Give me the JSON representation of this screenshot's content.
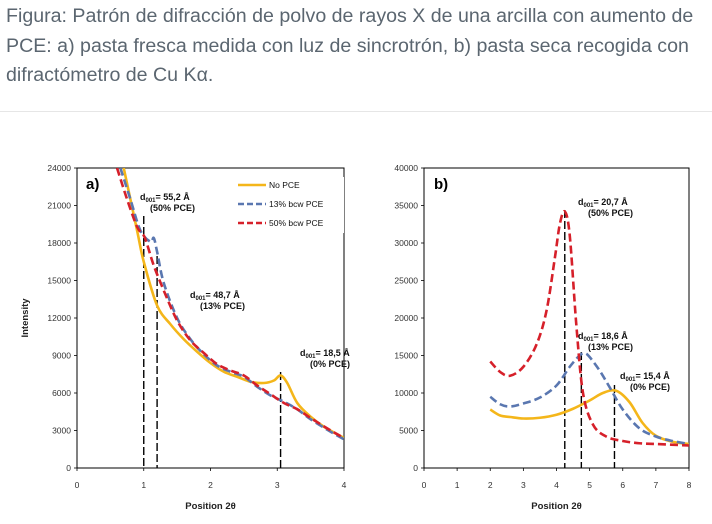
{
  "caption": "Figura: Patrón de difracción de polvo de rayos X de una arcilla con aumento de PCE: a) pasta fresca medida con luz de sincrotrón, b) pasta seca recogida con difractómetro de Cu Kα.",
  "colors": {
    "no_pce": "#f4b61a",
    "bcw13": "#5a77b0",
    "bcw50": "#d6202a",
    "frame": "#000000"
  },
  "chart_data": [
    {
      "type": "line",
      "panel_label": "a)",
      "xlabel": "Position 2θ",
      "ylabel": "Intensity",
      "xlim": [
        0,
        4
      ],
      "ylim": [
        0,
        24000
      ],
      "xticks": [
        0,
        1,
        2,
        3,
        4
      ],
      "yticks": [
        0,
        3000,
        6000,
        9000,
        12000,
        15000,
        18000,
        21000,
        24000
      ],
      "legend": "top-right",
      "series": [
        {
          "name": "No PCE",
          "color": "#f4b61a",
          "dash": "solid",
          "x": [
            0.7,
            0.9,
            1.0,
            1.2,
            1.4,
            1.6,
            1.8,
            2.0,
            2.2,
            2.4,
            2.6,
            2.8,
            2.95,
            3.05,
            3.15,
            3.3,
            3.5,
            3.7,
            4.0
          ],
          "y": [
            24000,
            19000,
            16500,
            13000,
            11500,
            10300,
            9300,
            8400,
            7700,
            7300,
            6900,
            6800,
            7000,
            7400,
            6800,
            5200,
            4100,
            3300,
            2400
          ]
        },
        {
          "name": "13% bcw PCE",
          "color": "#5a77b0",
          "dash": "dash",
          "x": [
            0.65,
            0.8,
            0.95,
            1.1,
            1.15,
            1.2,
            1.3,
            1.5,
            1.7,
            1.9,
            2.1,
            2.3,
            2.5,
            2.7,
            2.9,
            3.1,
            3.3,
            3.5,
            3.8,
            4.0
          ],
          "y": [
            24000,
            21500,
            19000,
            18100,
            18400,
            17300,
            14800,
            12000,
            10300,
            9100,
            8200,
            7700,
            7300,
            6500,
            5800,
            5300,
            4700,
            3900,
            2900,
            2300
          ]
        },
        {
          "name": "50% bcw PCE",
          "color": "#d6202a",
          "dash": "dash",
          "x": [
            0.6,
            0.75,
            0.9,
            1.0,
            1.05,
            1.15,
            1.3,
            1.5,
            1.7,
            1.9,
            2.1,
            2.3,
            2.5,
            2.7,
            2.9,
            3.1,
            3.3,
            3.5,
            3.8,
            4.0
          ],
          "y": [
            24000,
            21500,
            19300,
            18600,
            17900,
            16200,
            14200,
            11800,
            10200,
            9200,
            8300,
            7800,
            7400,
            6600,
            5900,
            5200,
            4700,
            4000,
            3000,
            2400
          ]
        }
      ],
      "peaks": [
        {
          "x": 1.0,
          "label": "d",
          "sub": "001",
          "value": "= 55,2 Å",
          "note": "(50% PCE)"
        },
        {
          "x": 1.2,
          "label": "d",
          "sub": "001",
          "value": "= 48,7 Å",
          "note": "(13% PCE)"
        },
        {
          "x": 3.05,
          "label": "d",
          "sub": "001",
          "value": "= 18,5 Å",
          "note": "(0% PCE)"
        }
      ]
    },
    {
      "type": "line",
      "panel_label": "b)",
      "xlabel": "Position 2θ",
      "ylabel": "",
      "xlim": [
        0,
        8
      ],
      "ylim": [
        0,
        40000
      ],
      "xticks": [
        0,
        1,
        2,
        3,
        4,
        5,
        6,
        7,
        8
      ],
      "yticks": [
        0,
        5000,
        10000,
        15000,
        20000,
        25000,
        30000,
        35000,
        40000
      ],
      "series": [
        {
          "name": "No PCE",
          "color": "#f4b61a",
          "dash": "solid",
          "x": [
            2.0,
            2.3,
            2.6,
            3.0,
            3.5,
            4.0,
            4.5,
            5.0,
            5.4,
            5.8,
            6.2,
            6.6,
            7.0,
            7.5,
            8.0
          ],
          "y": [
            7800,
            7000,
            6800,
            6600,
            6700,
            7100,
            7900,
            9000,
            10000,
            10300,
            8800,
            6000,
            4300,
            3500,
            3200
          ]
        },
        {
          "name": "13% bcw PCE",
          "color": "#5a77b0",
          "dash": "dash",
          "x": [
            2.0,
            2.3,
            2.6,
            3.0,
            3.5,
            4.0,
            4.4,
            4.7,
            4.85,
            5.0,
            5.3,
            5.6,
            6.0,
            6.5,
            7.0,
            7.5,
            8.0
          ],
          "y": [
            9500,
            8500,
            8200,
            8600,
            9400,
            11000,
            13500,
            15000,
            15300,
            14800,
            13000,
            10800,
            7800,
            5300,
            4200,
            3600,
            3200
          ]
        },
        {
          "name": "50% bcw PCE",
          "color": "#d6202a",
          "dash": "dash",
          "x": [
            2.0,
            2.3,
            2.6,
            3.0,
            3.4,
            3.7,
            3.95,
            4.1,
            4.25,
            4.4,
            4.6,
            4.8,
            5.1,
            5.5,
            6.0,
            6.5,
            7.0,
            8.0
          ],
          "y": [
            14200,
            12800,
            12300,
            13500,
            16500,
            21000,
            28000,
            32500,
            34200,
            31000,
            19000,
            10000,
            5800,
            4200,
            3600,
            3300,
            3200,
            3000
          ]
        }
      ],
      "peaks": [
        {
          "x": 4.25,
          "label": "d",
          "sub": "001",
          "value": "= 20,7 Å",
          "note": "(50% PCE)"
        },
        {
          "x": 4.75,
          "label": "d",
          "sub": "001",
          "value": "= 18,6 Å",
          "note": "(13% PCE)"
        },
        {
          "x": 5.75,
          "label": "d",
          "sub": "001",
          "value": "= 15,4 Å",
          "note": "(0% PCE)"
        }
      ]
    }
  ]
}
